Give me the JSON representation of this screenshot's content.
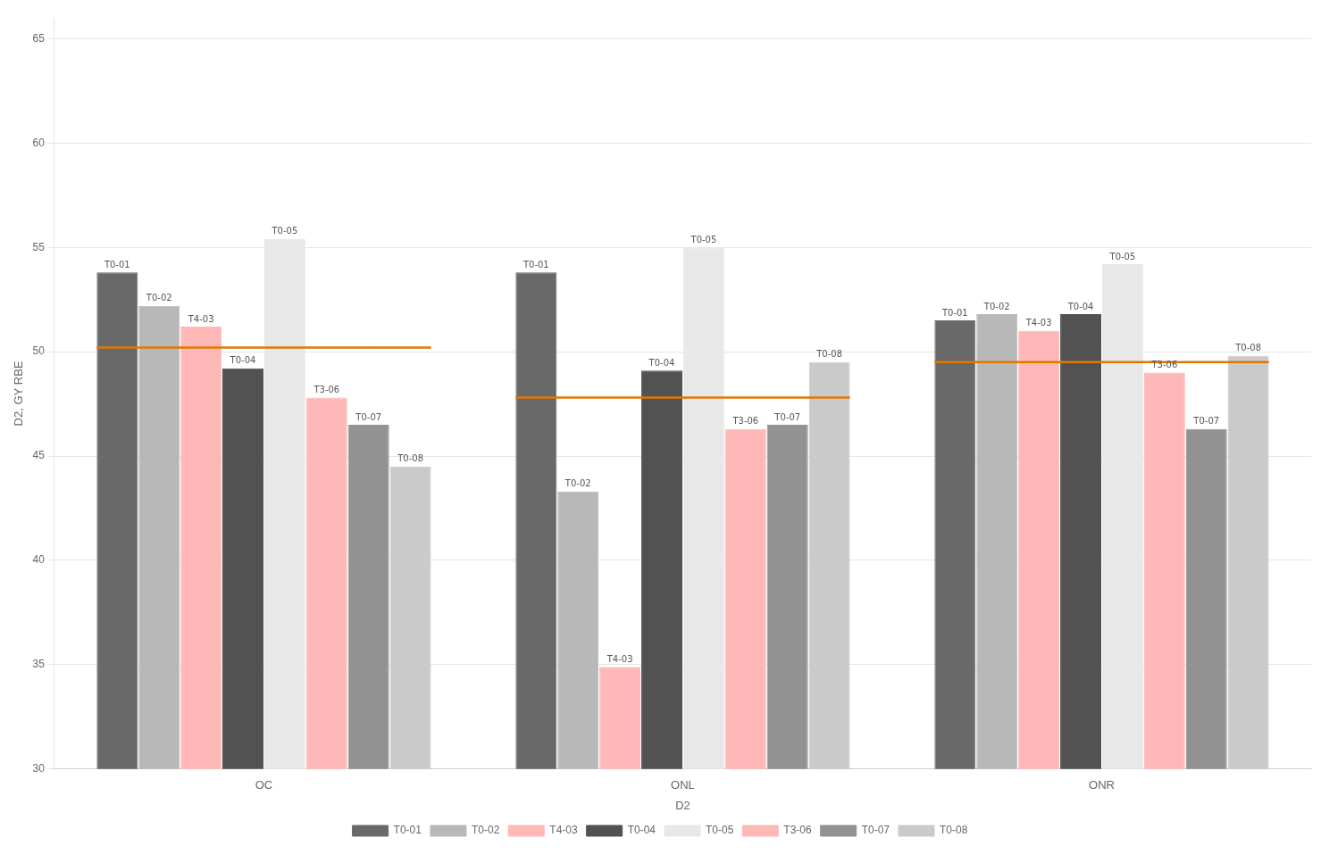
{
  "chart_data": {
    "type": "bar",
    "x_label": "D2",
    "y_label": "D2, GY RBE",
    "categories": [
      "OC",
      "ONL",
      "ONR"
    ],
    "series": [
      {
        "name": "T0-01",
        "color": "#696969",
        "values": [
          53.8,
          53.8,
          51.5
        ]
      },
      {
        "name": "T0-02",
        "color": "#b8b8b8",
        "values": [
          52.2,
          43.3,
          51.8
        ]
      },
      {
        "name": "T4-03",
        "color": "#ffb8b8",
        "values": [
          51.2,
          34.9,
          51.0
        ]
      },
      {
        "name": "T0-04",
        "color": "#525252",
        "values": [
          49.2,
          49.1,
          51.8
        ]
      },
      {
        "name": "T0-05",
        "color": "#e8e8e8",
        "values": [
          55.4,
          55.0,
          54.2
        ]
      },
      {
        "name": "T3-06",
        "color": "#ffb8b8",
        "values": [
          47.8,
          46.3,
          49.0
        ]
      },
      {
        "name": "T0-07",
        "color": "#929292",
        "values": [
          46.5,
          46.5,
          46.3
        ]
      },
      {
        "name": "T0-08",
        "color": "#cacaca",
        "values": [
          44.5,
          49.5,
          49.8
        ]
      }
    ],
    "reference_line": {
      "color": "#e07800",
      "values": [
        50.2,
        47.8,
        49.5
      ]
    },
    "ylim": [
      30,
      66
    ],
    "yticks": [
      30,
      35,
      40,
      45,
      50,
      55,
      60,
      65
    ],
    "grid": true,
    "legend": "bottom"
  }
}
